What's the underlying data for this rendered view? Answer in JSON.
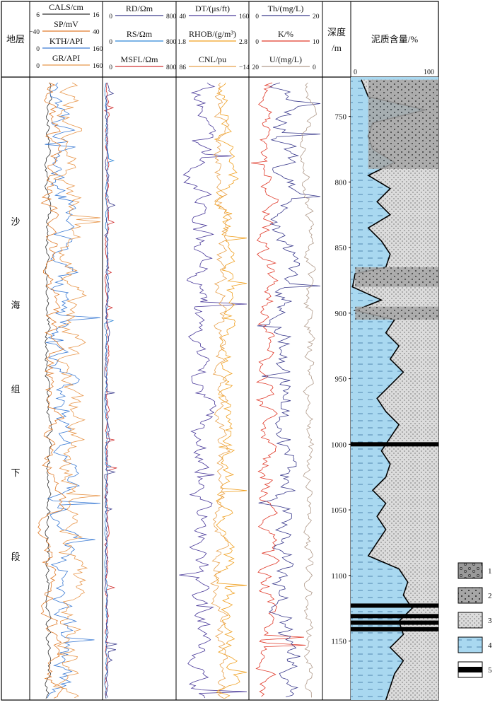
{
  "chart_data": {
    "type": "line",
    "title": "",
    "header": {
      "formation_label": "地层",
      "depth_label_line1": "深度",
      "depth_label_line2": "/m",
      "shale_label": "泥质含量/%"
    },
    "formation_chars": [
      "沙",
      "海",
      "组",
      "下",
      "段"
    ],
    "tracks": [
      {
        "curves": [
          {
            "name": "CALS/cm",
            "min": "6",
            "max": "16",
            "color": "#333333"
          },
          {
            "name": "SP/mV",
            "min": "−40",
            "max": "40",
            "color": "#e07b2a"
          },
          {
            "name": "KTH/API",
            "min": "0",
            "max": "160",
            "color": "#3b7bd4"
          },
          {
            "name": "GR/API",
            "min": "0",
            "max": "160",
            "color": "#e8964a"
          }
        ]
      },
      {
        "curves": [
          {
            "name": "RD/Ωm",
            "min": "0",
            "max": "800",
            "color": "#3a3a8c"
          },
          {
            "name": "RS/Ωm",
            "min": "0",
            "max": "800",
            "color": "#2f86d6"
          },
          {
            "name": "MSFL/Ωm",
            "min": "0",
            "max": "800",
            "color": "#d03030"
          }
        ]
      },
      {
        "curves": [
          {
            "name": "DT/(μs/ft)",
            "min": "40",
            "max": "160",
            "color": "#4a3a9a"
          },
          {
            "name": "RHOB/(g/m³)",
            "min": "1.8",
            "max": "2.8",
            "color": "#f0a020"
          },
          {
            "name": "CNL/pu",
            "min": "86",
            "max": "−14",
            "color": "#e8a04a"
          }
        ]
      },
      {
        "curves": [
          {
            "name": "Th/(mg/L)",
            "min": "0",
            "max": "20",
            "color": "#3a3a8c"
          },
          {
            "name": "K/%",
            "min": "0",
            "max": "10",
            "color": "#e03a2a"
          },
          {
            "name": "U/(mg/L)",
            "min": "20",
            "max": "0",
            "color": "#b09a8a"
          }
        ]
      }
    ],
    "shale_axis": {
      "min": "0",
      "max": "100"
    },
    "depth_range": [
      720,
      1195
    ],
    "depth_ticks": [
      "750",
      "800",
      "850",
      "900",
      "950",
      "1000",
      "1050",
      "1100",
      "1150"
    ],
    "shale_profile": [
      [
        722,
        12
      ],
      [
        735,
        20
      ],
      [
        745,
        85
      ],
      [
        755,
        25
      ],
      [
        765,
        20
      ],
      [
        775,
        25
      ],
      [
        785,
        50
      ],
      [
        795,
        20
      ],
      [
        805,
        45
      ],
      [
        815,
        30
      ],
      [
        825,
        45
      ],
      [
        835,
        20
      ],
      [
        845,
        35
      ],
      [
        855,
        45
      ],
      [
        865,
        40
      ],
      [
        870,
        5
      ],
      [
        880,
        2
      ],
      [
        890,
        35
      ],
      [
        898,
        5
      ],
      [
        905,
        50
      ],
      [
        915,
        40
      ],
      [
        925,
        55
      ],
      [
        935,
        45
      ],
      [
        945,
        60
      ],
      [
        955,
        45
      ],
      [
        965,
        30
      ],
      [
        975,
        40
      ],
      [
        985,
        55
      ],
      [
        995,
        45
      ],
      [
        1005,
        35
      ],
      [
        1015,
        45
      ],
      [
        1025,
        40
      ],
      [
        1035,
        25
      ],
      [
        1045,
        40
      ],
      [
        1055,
        30
      ],
      [
        1065,
        40
      ],
      [
        1075,
        30
      ],
      [
        1085,
        20
      ],
      [
        1095,
        55
      ],
      [
        1105,
        65
      ],
      [
        1115,
        60
      ],
      [
        1125,
        70
      ],
      [
        1135,
        55
      ],
      [
        1145,
        60
      ],
      [
        1155,
        45
      ],
      [
        1165,
        60
      ],
      [
        1175,
        50
      ],
      [
        1185,
        45
      ],
      [
        1195,
        40
      ]
    ],
    "thin_beds": [
      1000,
      1123,
      1131,
      1136,
      1141
    ],
    "legend": [
      {
        "label": "1",
        "pattern": "gravel"
      },
      {
        "label": "2",
        "pattern": "coarse-sand"
      },
      {
        "label": "3",
        "pattern": "fine-sand"
      },
      {
        "label": "4",
        "pattern": "mudstone"
      },
      {
        "label": "5",
        "pattern": "coal"
      }
    ]
  }
}
